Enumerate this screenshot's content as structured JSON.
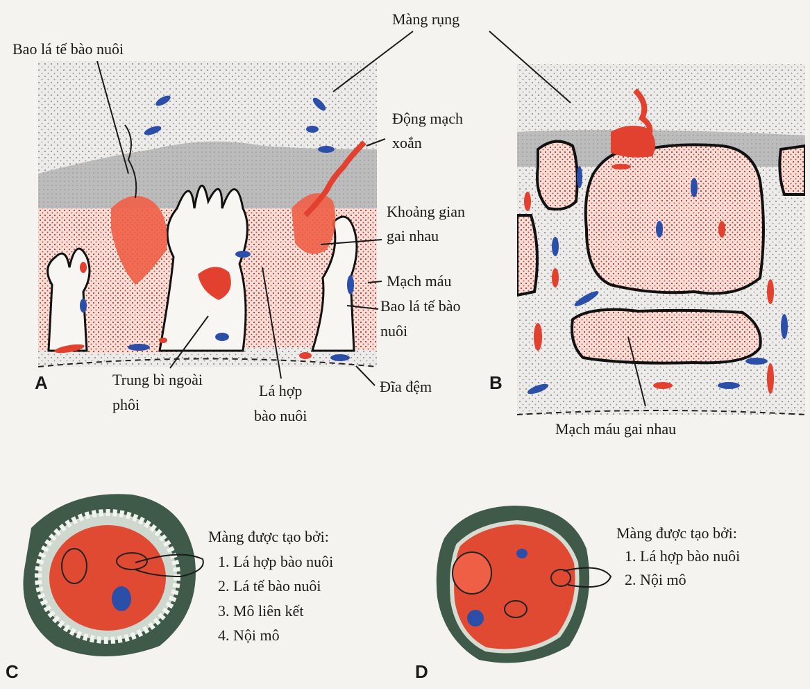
{
  "panels": {
    "a": "A",
    "b": "B",
    "c": "C",
    "d": "D"
  },
  "labels": {
    "mang_rung": "Màng rụng",
    "bao_la_te_bao_nuoi_top": "Bao lá tế bào nuôi",
    "dong_mach_xoan": [
      "Động mạch",
      "xoắn"
    ],
    "khoang_gian_gai_nhau": [
      "Khoảng gian",
      "gai nhau"
    ],
    "mach_mau": "Mạch máu",
    "bao_la_te_bao_nuoi_right": [
      "Bao lá tế bào",
      "nuôi"
    ],
    "dia_dem": "Đĩa đệm",
    "trung_bi_ngoai_phoi": [
      "Trung bì ngoài",
      "phôi"
    ],
    "la_hop_bao_nuoi": [
      "Lá hợp",
      "bào nuôi"
    ],
    "mach_mau_gai_nhau": "Mạch máu gai nhau"
  },
  "membrane_c": {
    "title": "Màng được tạo bởi:",
    "items": [
      "1. Lá hợp bào nuôi",
      "2. Lá tế bào nuôi",
      "3. Mô liên kết",
      "4. Nội mô"
    ]
  },
  "membrane_d": {
    "title": "Màng được tạo bởi:",
    "items": [
      "1. Lá hợp bào nuôi",
      "2. Nội mô"
    ]
  },
  "colors": {
    "decidua": "#e6e3e1",
    "chorion_plate": "#bdbdbd",
    "maternal_blood": "#f3d3cd",
    "arterial_red": "#e3412f",
    "vein_blue": "#2b4fa8",
    "mesoderm": "#f7f5f2",
    "villus_outer": "#3f5a48",
    "villus_core": "#e04a33"
  }
}
